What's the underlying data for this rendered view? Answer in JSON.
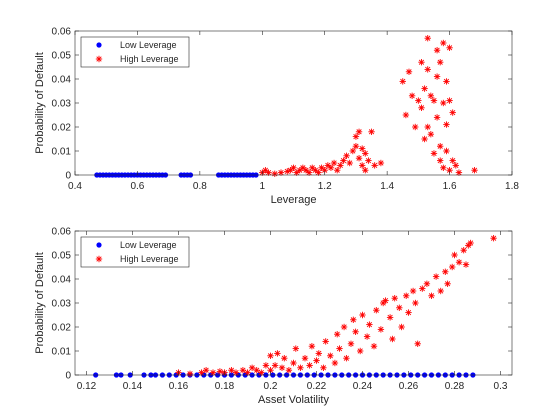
{
  "chart_data": [
    {
      "type": "scatter",
      "xlabel": "Leverage",
      "ylabel": "Probability of Default",
      "xlim": [
        0.4,
        1.8
      ],
      "ylim": [
        0,
        0.06
      ],
      "xticks": [
        "0.4",
        "0.6",
        "0.8",
        "1",
        "1.2",
        "1.4",
        "1.6",
        "1.8"
      ],
      "yticks": [
        "0",
        "0.01",
        "0.02",
        "0.03",
        "0.04",
        "0.05",
        "0.06"
      ],
      "legend": "top-left",
      "grid": false,
      "series": [
        {
          "name": "Low Leverage",
          "marker": "dot",
          "color": "#0000ff",
          "points": [
            [
              0.47,
              0
            ],
            [
              0.48,
              0
            ],
            [
              0.49,
              0
            ],
            [
              0.5,
              0
            ],
            [
              0.51,
              0
            ],
            [
              0.52,
              0
            ],
            [
              0.53,
              0
            ],
            [
              0.54,
              0
            ],
            [
              0.55,
              0
            ],
            [
              0.56,
              0
            ],
            [
              0.57,
              0
            ],
            [
              0.58,
              0
            ],
            [
              0.59,
              0
            ],
            [
              0.6,
              0
            ],
            [
              0.61,
              0
            ],
            [
              0.62,
              0
            ],
            [
              0.63,
              0
            ],
            [
              0.64,
              0
            ],
            [
              0.65,
              0
            ],
            [
              0.66,
              0
            ],
            [
              0.67,
              0
            ],
            [
              0.68,
              0
            ],
            [
              0.69,
              0
            ],
            [
              0.74,
              0
            ],
            [
              0.75,
              0
            ],
            [
              0.76,
              0
            ],
            [
              0.77,
              0
            ],
            [
              0.86,
              0
            ],
            [
              0.87,
              0
            ],
            [
              0.88,
              0
            ],
            [
              0.89,
              0
            ],
            [
              0.9,
              0
            ],
            [
              0.91,
              0
            ],
            [
              0.92,
              0
            ],
            [
              0.93,
              0
            ],
            [
              0.94,
              0
            ],
            [
              0.95,
              0
            ],
            [
              0.96,
              0
            ],
            [
              0.97,
              0
            ],
            [
              0.98,
              0
            ]
          ]
        },
        {
          "name": "High Leverage",
          "marker": "star",
          "color": "#ff0000",
          "points": [
            [
              1.0,
              0.001
            ],
            [
              1.01,
              0.002
            ],
            [
              1.02,
              0.001
            ],
            [
              1.04,
              0.0005
            ],
            [
              1.06,
              0.001
            ],
            [
              1.08,
              0.0015
            ],
            [
              1.09,
              0.002
            ],
            [
              1.1,
              0.003
            ],
            [
              1.11,
              0.001
            ],
            [
              1.12,
              0.002
            ],
            [
              1.13,
              0.003
            ],
            [
              1.14,
              0.002
            ],
            [
              1.15,
              0.001
            ],
            [
              1.16,
              0.003
            ],
            [
              1.17,
              0.002
            ],
            [
              1.18,
              0.001
            ],
            [
              1.19,
              0.003
            ],
            [
              1.2,
              0.002
            ],
            [
              1.21,
              0.004
            ],
            [
              1.22,
              0.003
            ],
            [
              1.23,
              0.005
            ],
            [
              1.24,
              0.002
            ],
            [
              1.25,
              0.004
            ],
            [
              1.26,
              0.006
            ],
            [
              1.27,
              0.008
            ],
            [
              1.28,
              0.005
            ],
            [
              1.29,
              0.01
            ],
            [
              1.3,
              0.012
            ],
            [
              1.3,
              0.016
            ],
            [
              1.31,
              0.018
            ],
            [
              1.31,
              0.007
            ],
            [
              1.32,
              0.011
            ],
            [
              1.32,
              0.004
            ],
            [
              1.33,
              0.002
            ],
            [
              1.33,
              0.009
            ],
            [
              1.34,
              0.006
            ],
            [
              1.35,
              0.018
            ],
            [
              1.36,
              0.004
            ],
            [
              1.38,
              0.005
            ],
            [
              1.45,
              0.039
            ],
            [
              1.46,
              0.025
            ],
            [
              1.47,
              0.043
            ],
            [
              1.48,
              0.033
            ],
            [
              1.49,
              0.02
            ],
            [
              1.5,
              0.031
            ],
            [
              1.51,
              0.028
            ],
            [
              1.51,
              0.047
            ],
            [
              1.52,
              0.036
            ],
            [
              1.52,
              0.015
            ],
            [
              1.53,
              0.057
            ],
            [
              1.53,
              0.044
            ],
            [
              1.53,
              0.02
            ],
            [
              1.54,
              0.033
            ],
            [
              1.54,
              0.017
            ],
            [
              1.55,
              0.031
            ],
            [
              1.55,
              0.009
            ],
            [
              1.56,
              0.052
            ],
            [
              1.56,
              0.041
            ],
            [
              1.56,
              0.024
            ],
            [
              1.57,
              0.047
            ],
            [
              1.57,
              0.012
            ],
            [
              1.57,
              0.006
            ],
            [
              1.58,
              0.03
            ],
            [
              1.58,
              0.055
            ],
            [
              1.58,
              0.003
            ],
            [
              1.59,
              0.039
            ],
            [
              1.59,
              0.021
            ],
            [
              1.59,
              0.01
            ],
            [
              1.6,
              0.053
            ],
            [
              1.6,
              0.031
            ],
            [
              1.6,
              0.002
            ],
            [
              1.61,
              0.026
            ],
            [
              1.61,
              0.006
            ],
            [
              1.62,
              0.004
            ],
            [
              1.63,
              0.001
            ],
            [
              1.68,
              0.002
            ]
          ]
        }
      ]
    },
    {
      "type": "scatter",
      "xlabel": "Asset Volatility",
      "ylabel": "Probability of Default",
      "xlim": [
        0.115,
        0.305
      ],
      "ylim": [
        0,
        0.06
      ],
      "xticks": [
        "0.12",
        "0.14",
        "0.16",
        "0.18",
        "0.2",
        "0.22",
        "0.24",
        "0.26",
        "0.28",
        "0.3"
      ],
      "yticks": [
        "0",
        "0.01",
        "0.02",
        "0.03",
        "0.04",
        "0.05",
        "0.06"
      ],
      "legend": "top-left",
      "grid": false,
      "series": [
        {
          "name": "Low Leverage",
          "marker": "dot",
          "color": "#0000ff",
          "points": [
            [
              0.124,
              0
            ],
            [
              0.133,
              0
            ],
            [
              0.135,
              0
            ],
            [
              0.139,
              0
            ],
            [
              0.145,
              0
            ],
            [
              0.148,
              0
            ],
            [
              0.15,
              0
            ],
            [
              0.153,
              0
            ],
            [
              0.156,
              0
            ],
            [
              0.159,
              0
            ],
            [
              0.162,
              0
            ],
            [
              0.165,
              0
            ],
            [
              0.168,
              0
            ],
            [
              0.171,
              0
            ],
            [
              0.174,
              0
            ],
            [
              0.177,
              0
            ],
            [
              0.18,
              0
            ],
            [
              0.183,
              0
            ],
            [
              0.186,
              0
            ],
            [
              0.189,
              0
            ],
            [
              0.192,
              0
            ],
            [
              0.195,
              0
            ],
            [
              0.198,
              0
            ],
            [
              0.201,
              0
            ],
            [
              0.204,
              0
            ],
            [
              0.207,
              0
            ],
            [
              0.21,
              0
            ],
            [
              0.213,
              0
            ],
            [
              0.216,
              0
            ],
            [
              0.219,
              0
            ],
            [
              0.222,
              0
            ],
            [
              0.225,
              0
            ],
            [
              0.228,
              0
            ],
            [
              0.231,
              0
            ],
            [
              0.234,
              0
            ],
            [
              0.237,
              0
            ],
            [
              0.24,
              0
            ],
            [
              0.243,
              0
            ],
            [
              0.246,
              0
            ],
            [
              0.249,
              0
            ],
            [
              0.252,
              0
            ],
            [
              0.255,
              0
            ],
            [
              0.258,
              0
            ],
            [
              0.261,
              0
            ],
            [
              0.264,
              0
            ],
            [
              0.267,
              0
            ],
            [
              0.27,
              0
            ],
            [
              0.273,
              0
            ],
            [
              0.276,
              0
            ],
            [
              0.279,
              0
            ],
            [
              0.282,
              0
            ],
            [
              0.285,
              0
            ],
            [
              0.288,
              0
            ]
          ]
        },
        {
          "name": "High Leverage",
          "marker": "star",
          "color": "#ff0000",
          "points": [
            [
              0.16,
              0.001
            ],
            [
              0.165,
              0.0005
            ],
            [
              0.17,
              0.001
            ],
            [
              0.172,
              0.002
            ],
            [
              0.175,
              0.001
            ],
            [
              0.178,
              0.0015
            ],
            [
              0.18,
              0.001
            ],
            [
              0.183,
              0.002
            ],
            [
              0.185,
              0.001
            ],
            [
              0.188,
              0.002
            ],
            [
              0.19,
              0.001
            ],
            [
              0.192,
              0.003
            ],
            [
              0.194,
              0.002
            ],
            [
              0.196,
              0.001
            ],
            [
              0.198,
              0.004
            ],
            [
              0.2,
              0.008
            ],
            [
              0.2,
              0.002
            ],
            [
              0.202,
              0.004
            ],
            [
              0.203,
              0.009
            ],
            [
              0.205,
              0.003
            ],
            [
              0.206,
              0.007
            ],
            [
              0.208,
              0.002
            ],
            [
              0.21,
              0.005
            ],
            [
              0.211,
              0.011
            ],
            [
              0.213,
              0.003
            ],
            [
              0.215,
              0.007
            ],
            [
              0.217,
              0.004
            ],
            [
              0.218,
              0.012
            ],
            [
              0.22,
              0.006
            ],
            [
              0.221,
              0.009
            ],
            [
              0.223,
              0.003
            ],
            [
              0.224,
              0.014
            ],
            [
              0.226,
              0.008
            ],
            [
              0.228,
              0.005
            ],
            [
              0.229,
              0.017
            ],
            [
              0.23,
              0.011
            ],
            [
              0.232,
              0.02
            ],
            [
              0.233,
              0.007
            ],
            [
              0.235,
              0.013
            ],
            [
              0.236,
              0.023
            ],
            [
              0.237,
              0.018
            ],
            [
              0.239,
              0.01
            ],
            [
              0.24,
              0.025
            ],
            [
              0.242,
              0.016
            ],
            [
              0.243,
              0.021
            ],
            [
              0.245,
              0.012
            ],
            [
              0.246,
              0.027
            ],
            [
              0.248,
              0.019
            ],
            [
              0.249,
              0.03
            ],
            [
              0.25,
              0.031
            ],
            [
              0.252,
              0.024
            ],
            [
              0.253,
              0.015
            ],
            [
              0.254,
              0.032
            ],
            [
              0.256,
              0.028
            ],
            [
              0.257,
              0.02
            ],
            [
              0.259,
              0.033
            ],
            [
              0.26,
              0.026
            ],
            [
              0.262,
              0.035
            ],
            [
              0.263,
              0.03
            ],
            [
              0.264,
              0.013
            ],
            [
              0.266,
              0.036
            ],
            [
              0.268,
              0.038
            ],
            [
              0.27,
              0.033
            ],
            [
              0.272,
              0.041
            ],
            [
              0.274,
              0.035
            ],
            [
              0.276,
              0.043
            ],
            [
              0.277,
              0.038
            ],
            [
              0.279,
              0.045
            ],
            [
              0.28,
              0.05
            ],
            [
              0.282,
              0.047
            ],
            [
              0.284,
              0.052
            ],
            [
              0.285,
              0.046
            ],
            [
              0.286,
              0.054
            ],
            [
              0.287,
              0.055
            ],
            [
              0.297,
              0.057
            ]
          ]
        }
      ]
    }
  ]
}
